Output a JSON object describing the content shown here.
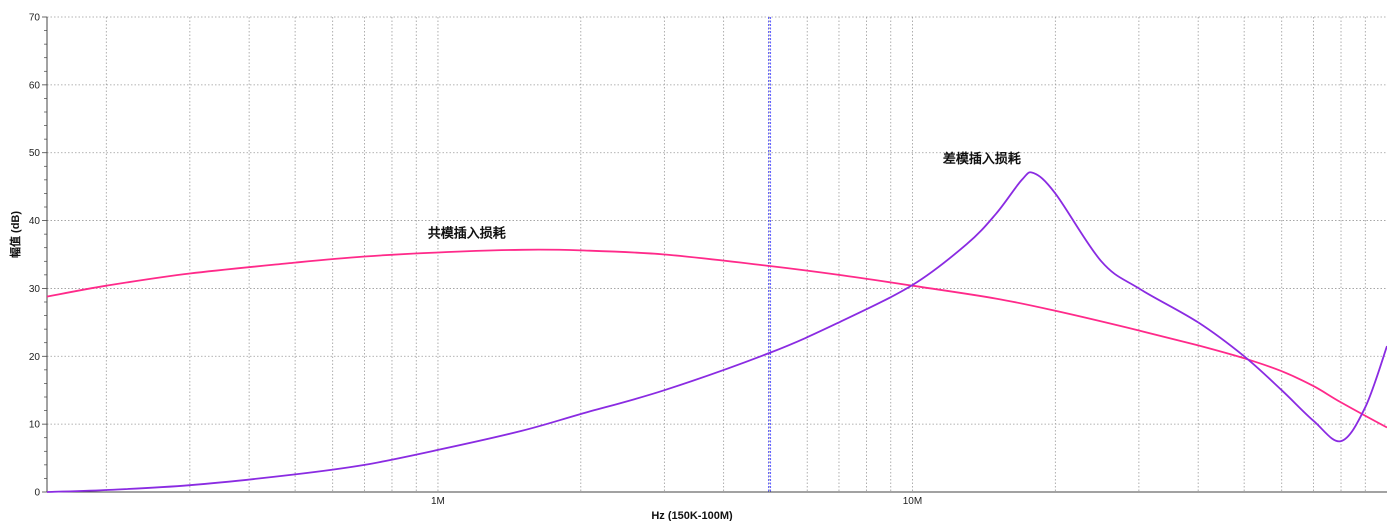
{
  "chart_data": {
    "type": "line",
    "title": "",
    "xlabel": "Hz  (150K-100M)",
    "ylabel": "幅值 (dB)",
    "x_scale": "log",
    "xlim": [
      150000,
      100000000
    ],
    "ylim": [
      0,
      70
    ],
    "y_ticks": [
      "0",
      "10",
      "20",
      "30",
      "40",
      "50",
      "60",
      "70"
    ],
    "x_tick_labels": [
      {
        "value": 1000000,
        "label": "1M"
      },
      {
        "value": 10000000,
        "label": "10M"
      }
    ],
    "grid": true,
    "marker_line_x": 5000000,
    "colors": {
      "common_mode": "#ff2a8a",
      "differential_mode": "#8a2be2",
      "marker": "#3a3aff",
      "grid": "#9a9a9a"
    },
    "series": [
      {
        "name": "共模插入损耗",
        "color": "#ff2a8a",
        "x": [
          150000,
          200000,
          300000,
          500000,
          700000,
          1000000,
          1500000,
          2000000,
          3000000,
          5000000,
          7000000,
          10000000,
          15000000,
          20000000,
          30000000,
          40000000,
          50000000,
          60000000,
          70000000,
          80000000,
          100000000
        ],
        "y": [
          28.8,
          30.4,
          32.2,
          33.8,
          34.7,
          35.3,
          35.7,
          35.6,
          35.0,
          33.3,
          32.0,
          30.4,
          28.5,
          26.7,
          23.8,
          21.6,
          19.7,
          17.8,
          15.6,
          13.2,
          9.5
        ]
      },
      {
        "name": "差模插入损耗",
        "color": "#8a2be2",
        "x": [
          150000,
          200000,
          300000,
          500000,
          700000,
          1000000,
          1500000,
          2000000,
          3000000,
          5000000,
          7000000,
          10000000,
          13000000,
          15000000,
          17000000,
          18000000,
          20000000,
          25000000,
          30000000,
          40000000,
          50000000,
          60000000,
          70000000,
          80000000,
          90000000,
          100000000
        ],
        "y": [
          0.0,
          0.3,
          1.0,
          2.6,
          4.0,
          6.2,
          9.0,
          11.5,
          15.0,
          20.5,
          25.0,
          30.5,
          36.5,
          41.0,
          46.0,
          47.0,
          44.0,
          34.0,
          30.0,
          25.0,
          20.0,
          15.0,
          10.5,
          7.5,
          12.5,
          21.5
        ]
      }
    ],
    "annotations": [
      {
        "text": "共模插入损耗",
        "x": 1150000,
        "y": 37.5
      },
      {
        "text": "差模插入损耗",
        "x": 14000000,
        "y": 48.5
      }
    ]
  }
}
